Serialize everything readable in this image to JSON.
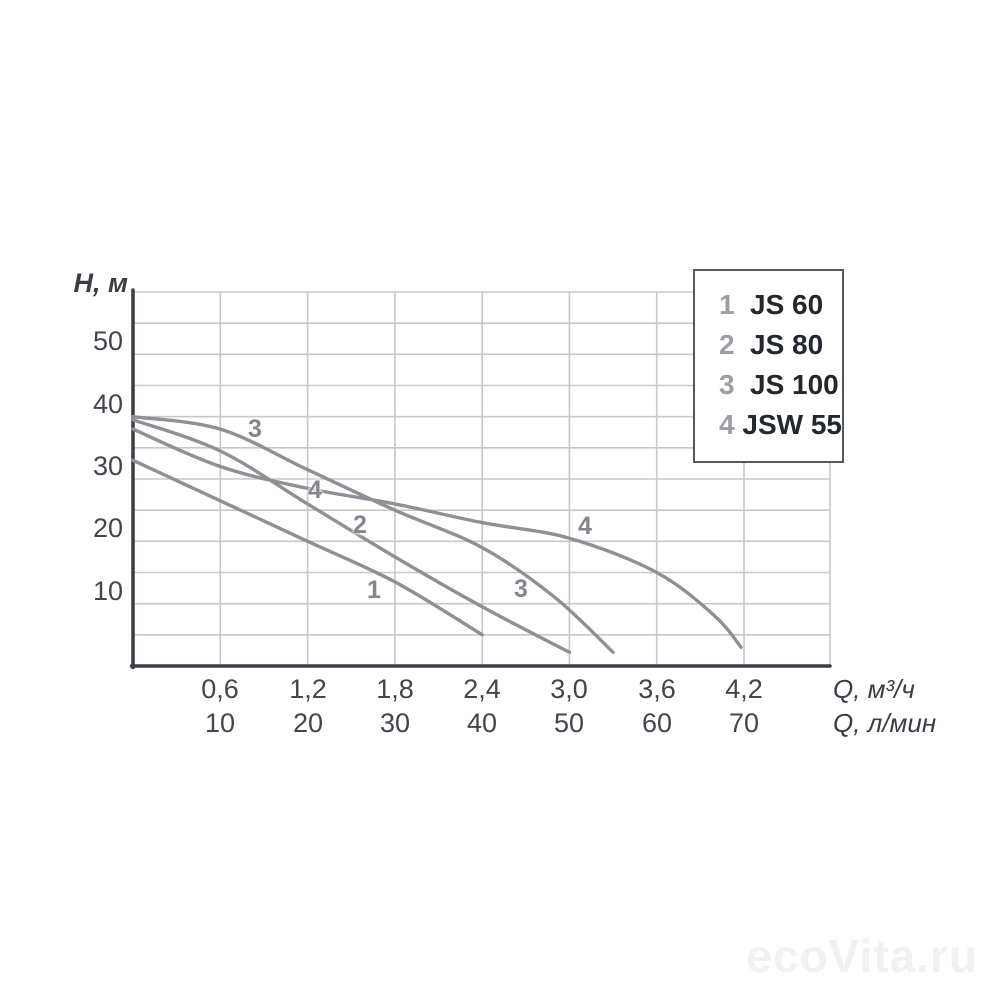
{
  "watermark": "ecoVita.ru",
  "legend": {
    "items": [
      {
        "num": "1",
        "name": "JS 60"
      },
      {
        "num": "2",
        "name": "JS 80"
      },
      {
        "num": "3",
        "name": "JS 100"
      },
      {
        "num": "4",
        "name": "JSW 55"
      }
    ]
  },
  "colors": {
    "curve": "#8e9095",
    "grid": "#c7c8ca",
    "axis": "#3a3d43",
    "tick_text": "#42454d",
    "legend_number": "#9b9ea4",
    "legend_name": "#23272f",
    "curve_label": "#83868d",
    "watermark": "#f0f1f4"
  },
  "chart_data": {
    "type": "line",
    "title": "",
    "ylabel": "H, м",
    "xlabel_m3h": "Q, м³/ч",
    "xlabel_lmin": "Q, л/мин",
    "ylim": [
      0,
      60
    ],
    "xlim": [
      0,
      4.8
    ],
    "grid": {
      "y_step_m": 5,
      "x_step_m3h": 0.6,
      "grid_on": true
    },
    "y_ticks": [
      {
        "label": "50",
        "value": 50
      },
      {
        "label": "40",
        "value": 40
      },
      {
        "label": "30",
        "value": 30
      },
      {
        "label": "20",
        "value": 20
      },
      {
        "label": "10",
        "value": 10
      }
    ],
    "x_ticks": [
      {
        "m3h": "0,6",
        "lmin": "10",
        "q": 0.6
      },
      {
        "m3h": "1,2",
        "lmin": "20",
        "q": 1.2
      },
      {
        "m3h": "1,8",
        "lmin": "30",
        "q": 1.8
      },
      {
        "m3h": "2,4",
        "lmin": "40",
        "q": 2.4
      },
      {
        "m3h": "3,0",
        "lmin": "50",
        "q": 3.0
      },
      {
        "m3h": "3,6",
        "lmin": "60",
        "q": 3.6
      },
      {
        "m3h": "4,2",
        "lmin": "70",
        "q": 4.2
      }
    ],
    "series": [
      {
        "id": "1",
        "name": "JS 60",
        "points": [
          [
            0,
            33
          ],
          [
            0.6,
            26.5
          ],
          [
            1.2,
            20
          ],
          [
            1.8,
            13.5
          ],
          [
            2.4,
            5
          ]
        ]
      },
      {
        "id": "2",
        "name": "JS 80",
        "points": [
          [
            0,
            39.5
          ],
          [
            0.6,
            34.5
          ],
          [
            1.2,
            26
          ],
          [
            1.8,
            17.5
          ],
          [
            2.4,
            9.5
          ],
          [
            3.0,
            2.2
          ]
        ]
      },
      {
        "id": "3",
        "name": "JS 100",
        "points": [
          [
            0,
            40
          ],
          [
            0.6,
            38
          ],
          [
            1.2,
            31.5
          ],
          [
            1.8,
            25
          ],
          [
            2.4,
            19
          ],
          [
            2.9,
            11
          ],
          [
            3.3,
            2.2
          ]
        ]
      },
      {
        "id": "4",
        "name": "JSW 55",
        "points": [
          [
            0,
            38
          ],
          [
            0.6,
            32
          ],
          [
            1.2,
            28.5
          ],
          [
            1.8,
            26
          ],
          [
            2.4,
            23
          ],
          [
            3.0,
            20.5
          ],
          [
            3.6,
            15
          ],
          [
            4.0,
            8
          ],
          [
            4.18,
            3
          ]
        ]
      }
    ],
    "curve_labels": [
      {
        "text": "3",
        "q": 0.84,
        "h": 37.7
      },
      {
        "text": "4",
        "q": 1.25,
        "h": 27.9
      },
      {
        "text": "2",
        "q": 1.56,
        "h": 22.3
      },
      {
        "text": "1",
        "q": 1.66,
        "h": 11.9
      },
      {
        "text": "4",
        "q": 3.11,
        "h": 22.1
      },
      {
        "text": "3",
        "q": 2.67,
        "h": 12.0
      }
    ]
  }
}
